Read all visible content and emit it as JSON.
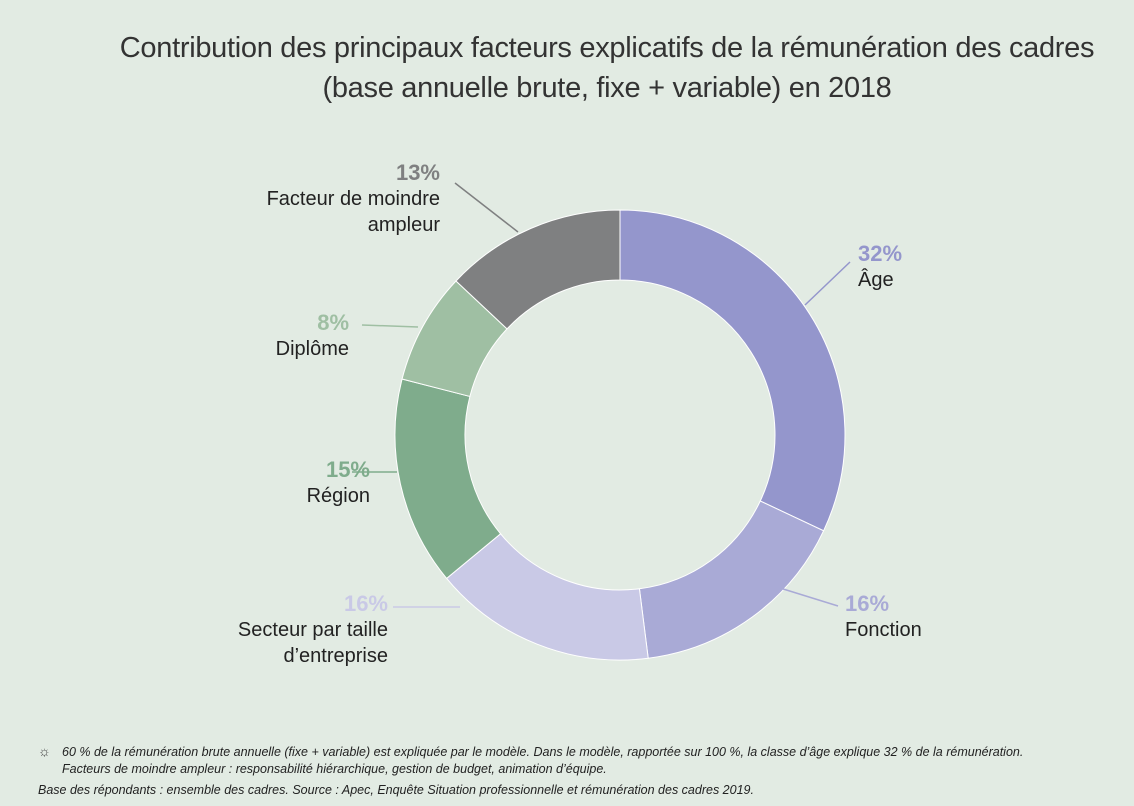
{
  "chart_data": {
    "type": "donut",
    "title": "Contribution des principaux facteurs explicatifs de la rémunération des cadres (base annuelle brute, fixe + variable) en 2018",
    "categories": [
      "Âge",
      "Fonction",
      "Secteur par taille d’entreprise",
      "Région",
      "Diplôme",
      "Facteur de moindre ampleur"
    ],
    "values": [
      32,
      16,
      16,
      15,
      8,
      13
    ],
    "value_labels": [
      "32%",
      "16%",
      "16%",
      "15%",
      "8%",
      "13%"
    ],
    "colors": [
      "#9496cc",
      "#a9aad6",
      "#c9c9e6",
      "#7fac8c",
      "#9fbfa3",
      "#7f8081"
    ],
    "note": "60 % de la rémunération brute annuelle (fixe + variable) est expliquée par le modèle. Dans le modèle, rapportée sur 100 %, la classe d’âge explique 32 % de la rémunération. Facteurs de moindre ampleur : responsabilité hiérarchique, gestion de budget, animation d’équipe.",
    "source": "Base des répondants : ensemble des cadres. Source : Apec, Enquête Situation professionnelle et rémunération des cadres 2019."
  }
}
